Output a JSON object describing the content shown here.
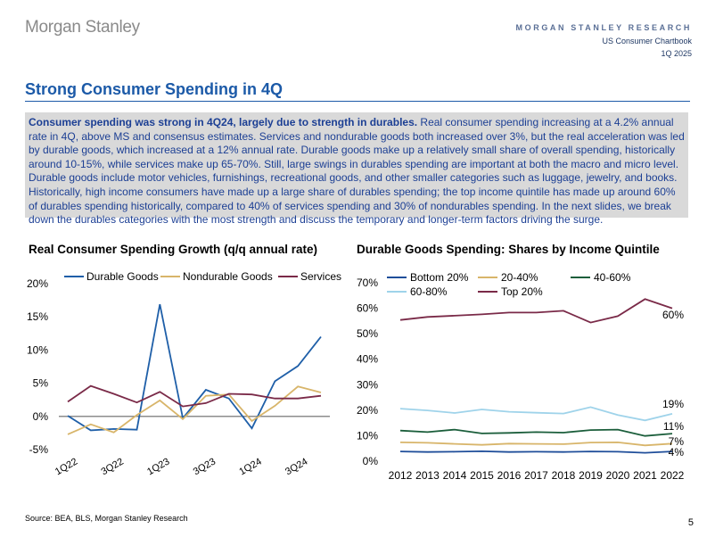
{
  "header": {
    "logo": "Morgan Stanley",
    "line1": "MORGAN STANLEY RESEARCH",
    "line2": "US Consumer Chartbook",
    "line3": "1Q 2025"
  },
  "page_title": "Strong Consumer Spending in 4Q",
  "summary": {
    "bold": "Consumer spending was strong in 4Q24, largely due to strength in durables.",
    "text": " Real consumer spending increasing at a 4.2% annual rate in 4Q, above MS and consensus estimates. Services and nondurable goods both increased over 3%, but the real acceleration was led by durable goods, which increased at a 12% annual rate. Durable goods make up a relatively small share of overall spending, historically around 10-15%, while services make up 65-70%. Still, large swings in durables spending are important at both the macro and micro level. Durable goods include motor vehicles, furnishings, recreational goods, and other smaller categories such as luggage, jewelry, and books. Historically, high income consumers have made up a large share of durables spending; the top income quintile has made up around 60% of durables spending historically, compared to 40% of services spending and 30% of nondurables spending. In the next slides, we break down the durables categories with the most strength and discuss the temporary and longer-term factors driving the surge."
  },
  "source": "Source: BEA, BLS, Morgan Stanley Research",
  "page_number": "5",
  "colors": {
    "brand_blue": "#1c5aa8",
    "durable": "#1f5fa8",
    "nondurable": "#d8b56a",
    "services": "#7a2a48",
    "bottom20": "#1f4e9a",
    "q2040": "#d8b56a",
    "q4060": "#1b5e3b",
    "q6080": "#9fd3ea",
    "top20": "#7a2a48"
  },
  "chart_data": [
    {
      "type": "line",
      "title": "Real Consumer Spending Growth (q/q annual rate)",
      "x": [
        "1Q22",
        "2Q22",
        "3Q22",
        "4Q22",
        "1Q23",
        "2Q23",
        "3Q23",
        "4Q23",
        "1Q24",
        "2Q24",
        "3Q24",
        "4Q24"
      ],
      "tick_labels": [
        "1Q22",
        "3Q22",
        "1Q23",
        "3Q23",
        "1Q24",
        "3Q24"
      ],
      "series": [
        {
          "name": "Durable Goods",
          "values": [
            0.1,
            -2.1,
            -1.9,
            -2.0,
            16.9,
            -0.3,
            4.0,
            2.7,
            -1.8,
            5.3,
            7.6,
            12.0
          ]
        },
        {
          "name": "Nondurable Goods",
          "values": [
            -2.7,
            -1.2,
            -2.4,
            0.2,
            2.4,
            -0.4,
            3.1,
            3.3,
            -0.7,
            1.6,
            4.5,
            3.6
          ]
        },
        {
          "name": "Services",
          "values": [
            2.2,
            4.6,
            3.4,
            2.1,
            3.7,
            1.5,
            2.0,
            3.4,
            3.3,
            2.7,
            2.7,
            3.1
          ]
        }
      ],
      "ylim": [
        -5,
        20
      ],
      "yticks": [
        "-5%",
        "0%",
        "5%",
        "10%",
        "15%",
        "20%"
      ],
      "xlabel": "",
      "ylabel": "",
      "legend": "top"
    },
    {
      "type": "line",
      "title": "Durable Goods Spending: Shares by Income Quintile",
      "x": [
        "2012",
        "2013",
        "2014",
        "2015",
        "2016",
        "2017",
        "2018",
        "2019",
        "2020",
        "2021",
        "2022"
      ],
      "series": [
        {
          "name": "Bottom 20%",
          "values": [
            3.8,
            3.6,
            3.7,
            3.9,
            3.6,
            3.7,
            3.6,
            3.8,
            3.7,
            3.3,
            3.8
          ]
        },
        {
          "name": "20-40%",
          "values": [
            7.4,
            7.2,
            6.8,
            6.4,
            6.9,
            6.8,
            6.7,
            7.3,
            7.4,
            6.2,
            6.9
          ]
        },
        {
          "name": "40-60%",
          "values": [
            12.0,
            11.4,
            12.4,
            10.9,
            11.1,
            11.4,
            11.2,
            12.2,
            12.4,
            9.9,
            10.8
          ]
        },
        {
          "name": "60-80%",
          "values": [
            20.6,
            19.9,
            18.9,
            20.3,
            19.4,
            19.0,
            18.7,
            21.2,
            18.1,
            16.0,
            18.6
          ]
        },
        {
          "name": "Top 20%",
          "values": [
            55.4,
            56.6,
            57.1,
            57.6,
            58.3,
            58.3,
            59.0,
            54.4,
            56.9,
            63.6,
            60.0
          ]
        }
      ],
      "end_labels": [
        "4%",
        "7%",
        "11%",
        "19%",
        "60%"
      ],
      "ylim": [
        0,
        70
      ],
      "yticks": [
        "0%",
        "10%",
        "20%",
        "30%",
        "40%",
        "50%",
        "60%",
        "70%"
      ],
      "xlabel": "",
      "ylabel": "",
      "legend": "top"
    }
  ]
}
